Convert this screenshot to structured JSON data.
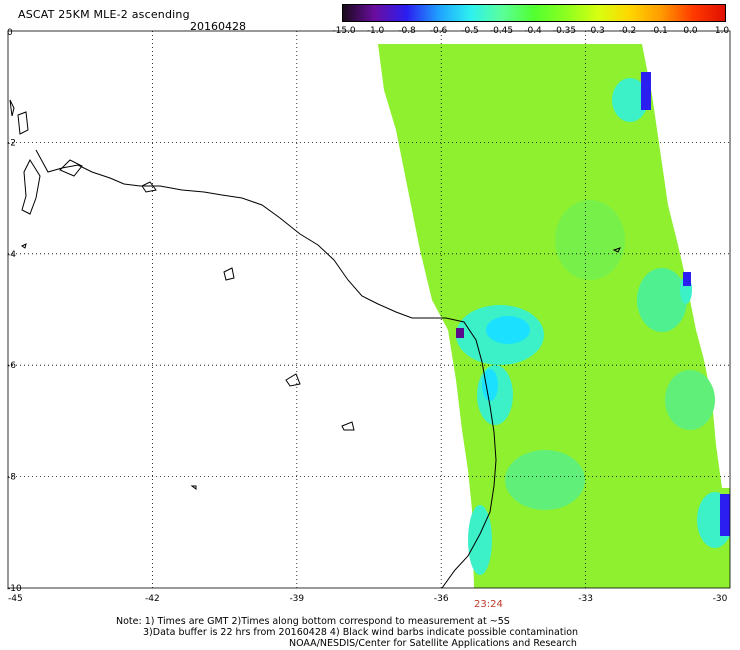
{
  "header": {
    "title": "ASCAT 25KM MLE-2 ascending",
    "date": "20160428"
  },
  "colorbar": {
    "labels": [
      "-15.0",
      "-1.0",
      "-0.8",
      "-0.6",
      "-0.5",
      "-0.45",
      "-0.4",
      "-0.35",
      "-0.3",
      "-0.2",
      "-0.1",
      "0.0",
      "1.0"
    ],
    "colors": [
      "#1a0a1a",
      "#6a0da0",
      "#2b1ef0",
      "#1fa0ff",
      "#2ef0f0",
      "#5aff9a",
      "#52ff30",
      "#8cff20",
      "#d6ff10",
      "#ffd700",
      "#ff9a00",
      "#ff3a00",
      "#e01000"
    ]
  },
  "map": {
    "lon_ticks": [
      "-45",
      "-42",
      "-39",
      "-36",
      "-33",
      "-30"
    ],
    "lat_ticks": [
      "0",
      "-2",
      "-4",
      "-6",
      "-8",
      "-10"
    ],
    "pass_time": "23:24"
  },
  "footer": {
    "line1": "Note: 1) Times are GMT 2)Times along bottom correspond to measurement at ~5S",
    "line2": "3)Data buffer is 22 hrs from 20160428 4) Black wind barbs indicate possible contamination",
    "line3": "NOAA/NESDIS/Center for Satellite Applications and Research"
  }
}
